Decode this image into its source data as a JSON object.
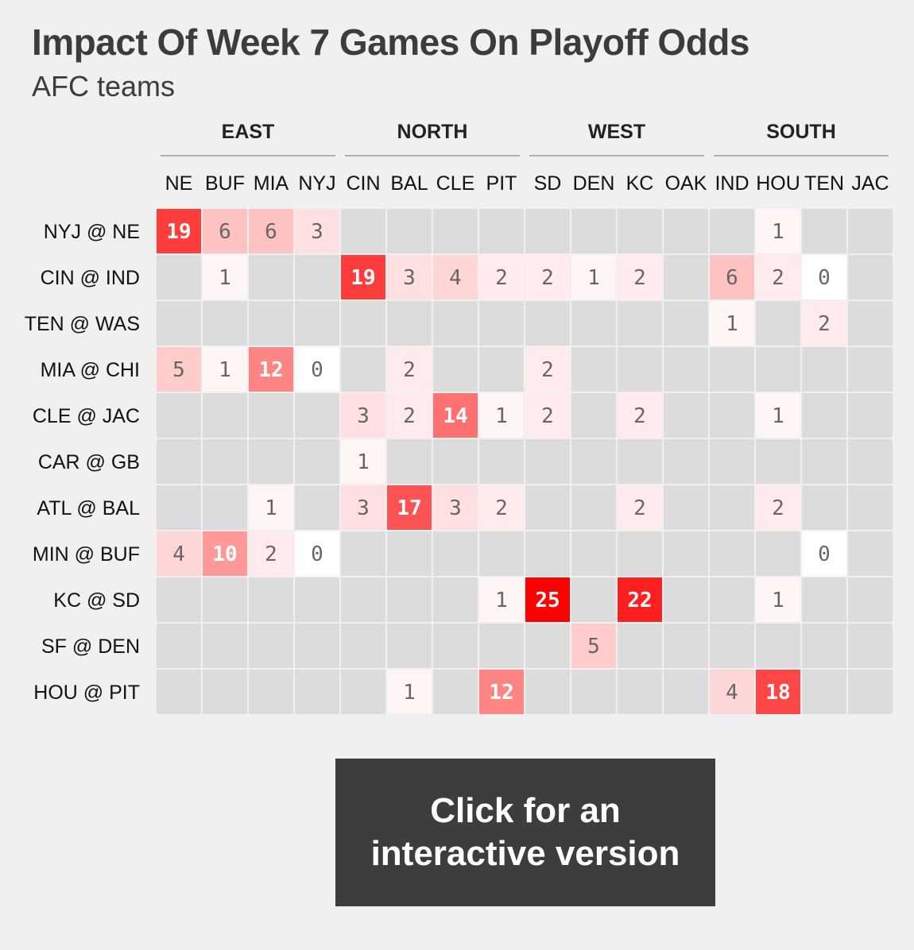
{
  "title": "Impact Of Week 7 Games On Playoff Odds",
  "subtitle": "AFC teams",
  "cta": {
    "label": "Click for an interactive version"
  },
  "colors": {
    "empty_cell": "#dcdcdc",
    "low": "#ffffff",
    "high": "#ff0000",
    "background": "#f0f0f0",
    "cta_background": "#3d3d3d"
  },
  "chart_data": {
    "type": "heatmap",
    "title": "Impact Of Week 7 Games On Playoff Odds",
    "subtitle": "AFC teams",
    "divisions": [
      {
        "name": "EAST",
        "teams": [
          "NE",
          "BUF",
          "MIA",
          "NYJ"
        ]
      },
      {
        "name": "NORTH",
        "teams": [
          "CIN",
          "BAL",
          "CLE",
          "PIT"
        ]
      },
      {
        "name": "WEST",
        "teams": [
          "SD",
          "DEN",
          "KC",
          "OAK"
        ]
      },
      {
        "name": "SOUTH",
        "teams": [
          "IND",
          "HOU",
          "TEN",
          "JAC"
        ]
      }
    ],
    "columns": [
      "NE",
      "BUF",
      "MIA",
      "NYJ",
      "CIN",
      "BAL",
      "CLE",
      "PIT",
      "SD",
      "DEN",
      "KC",
      "OAK",
      "IND",
      "HOU",
      "TEN",
      "JAC"
    ],
    "rows": [
      "NYJ @ NE",
      "CIN @ IND",
      "TEN @ WAS",
      "MIA @ CHI",
      "CLE @ JAC",
      "CAR @ GB",
      "ATL @ BAL",
      "MIN @ BUF",
      "KC @ SD",
      "SF @ DEN",
      "HOU @ PIT"
    ],
    "values": [
      [
        19,
        6,
        6,
        3,
        null,
        null,
        null,
        null,
        null,
        null,
        null,
        null,
        null,
        1,
        null,
        null
      ],
      [
        null,
        1,
        null,
        null,
        19,
        3,
        4,
        2,
        2,
        1,
        2,
        null,
        6,
        2,
        0,
        null
      ],
      [
        null,
        null,
        null,
        null,
        null,
        null,
        null,
        null,
        null,
        null,
        null,
        null,
        1,
        null,
        2,
        null
      ],
      [
        5,
        1,
        12,
        0,
        null,
        2,
        null,
        null,
        2,
        null,
        null,
        null,
        null,
        null,
        null,
        null
      ],
      [
        null,
        null,
        null,
        null,
        3,
        2,
        14,
        1,
        2,
        null,
        2,
        null,
        null,
        1,
        null,
        null
      ],
      [
        null,
        null,
        null,
        null,
        1,
        null,
        null,
        null,
        null,
        null,
        null,
        null,
        null,
        null,
        null,
        null
      ],
      [
        null,
        null,
        1,
        null,
        3,
        17,
        3,
        2,
        null,
        null,
        2,
        null,
        null,
        2,
        null,
        null
      ],
      [
        4,
        10,
        2,
        0,
        null,
        null,
        null,
        null,
        null,
        null,
        null,
        null,
        null,
        null,
        0,
        null
      ],
      [
        null,
        null,
        null,
        null,
        null,
        null,
        null,
        1,
        25,
        null,
        22,
        null,
        null,
        1,
        null,
        null
      ],
      [
        null,
        null,
        null,
        null,
        null,
        null,
        null,
        null,
        null,
        5,
        null,
        null,
        null,
        null,
        null,
        null
      ],
      [
        null,
        null,
        null,
        null,
        null,
        1,
        null,
        12,
        null,
        null,
        null,
        null,
        4,
        18,
        null,
        null
      ]
    ],
    "value_range": [
      0,
      25
    ]
  }
}
